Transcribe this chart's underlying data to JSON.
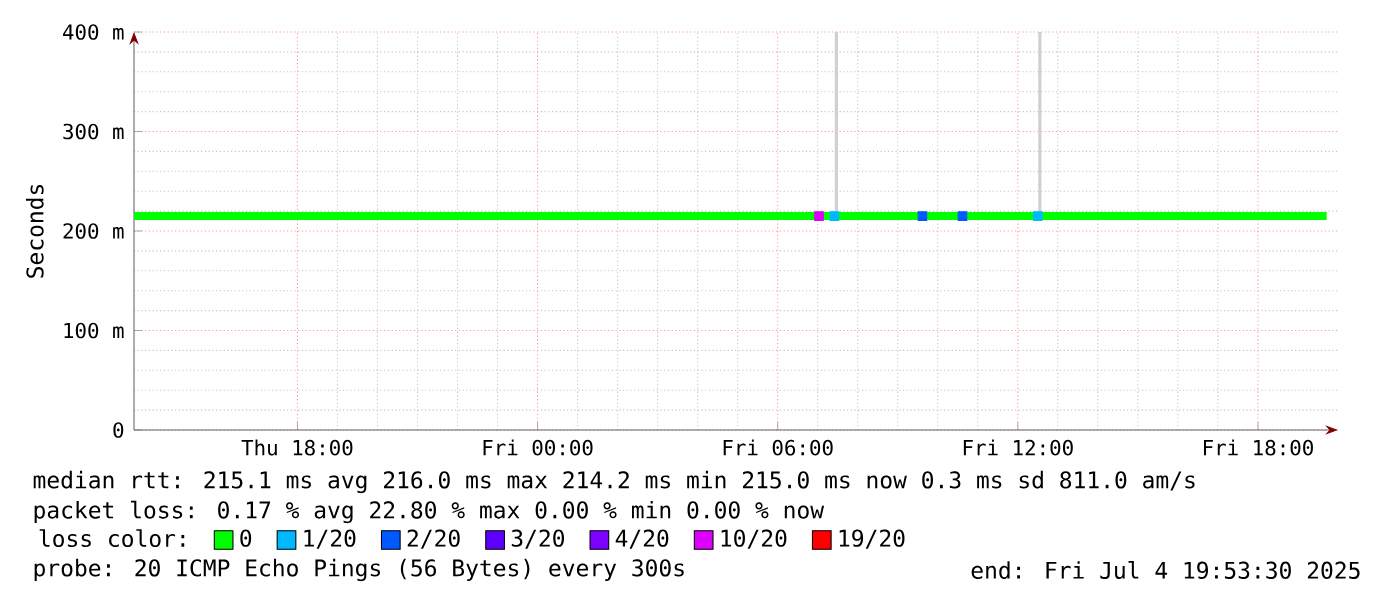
{
  "chart_data": {
    "type": "line",
    "ylabel": "Seconds",
    "xlim": [
      "2025-07-03T13:55",
      "2025-07-04T20:00"
    ],
    "xticks": [
      {
        "value": "2025-07-03T18:00",
        "label": "Thu 18:00"
      },
      {
        "value": "2025-07-04T00:00",
        "label": "Fri 00:00"
      },
      {
        "value": "2025-07-04T06:00",
        "label": "Fri 06:00"
      },
      {
        "value": "2025-07-04T12:00",
        "label": "Fri 12:00"
      },
      {
        "value": "2025-07-04T18:00",
        "label": "Fri 18:00"
      }
    ],
    "ylim": [
      0,
      400
    ],
    "yticks": [
      0,
      {
        "value": 100,
        "label": "100 m"
      },
      {
        "value": 200,
        "label": "200 m"
      },
      {
        "value": 300,
        "label": "300 m"
      },
      {
        "value": 400,
        "label": "400 m"
      }
    ],
    "grid": true,
    "legend": "bottom",
    "legend_title": "loss color:",
    "series": [
      {
        "name": "0",
        "color": "#00ff00",
        "x": [
          "2025-07-03T13:55",
          "2025-07-03T15:00",
          "2025-07-03T16:00",
          "2025-07-03T17:00",
          "2025-07-03T18:00",
          "2025-07-03T19:00",
          "2025-07-03T20:00",
          "2025-07-03T21:00",
          "2025-07-03T22:00",
          "2025-07-03T23:00",
          "2025-07-04T00:00",
          "2025-07-04T01:00",
          "2025-07-04T02:00",
          "2025-07-04T03:00",
          "2025-07-04T04:00",
          "2025-07-04T05:00",
          "2025-07-04T06:00",
          "2025-07-04T07:00",
          "2025-07-04T08:00",
          "2025-07-04T09:00",
          "2025-07-04T10:00",
          "2025-07-04T11:00",
          "2025-07-04T12:00",
          "2025-07-04T13:00",
          "2025-07-04T14:00",
          "2025-07-04T15:00",
          "2025-07-04T16:00",
          "2025-07-04T17:00",
          "2025-07-04T18:00",
          "2025-07-04T19:00",
          "2025-07-04T19:43"
        ],
        "values": [
          215,
          215,
          215,
          215,
          215,
          215,
          215,
          215,
          215,
          215,
          215,
          215,
          215,
          215,
          215,
          215,
          215,
          215,
          215,
          215,
          215,
          215,
          215,
          215,
          215,
          215,
          215,
          215,
          215,
          215,
          215
        ]
      },
      {
        "name": "1/20",
        "type": "scatter",
        "marker": "square",
        "color": "#00b8ff",
        "x": [
          "2025-07-04T07:25",
          "2025-07-04T12:30"
        ],
        "values": [
          215,
          215
        ]
      },
      {
        "name": "2/20",
        "type": "scatter",
        "marker": "square",
        "color": "#0059ff",
        "x": [
          "2025-07-04T09:37",
          "2025-07-04T10:37"
        ],
        "values": [
          215,
          215
        ]
      },
      {
        "name": "3/20",
        "type": "scatter",
        "marker": "square",
        "color": "#5e00ff"
      },
      {
        "name": "4/20",
        "type": "scatter",
        "marker": "square",
        "color": "#7e00ff"
      },
      {
        "name": "10/20",
        "type": "scatter",
        "marker": "square",
        "color": "#dd00ff",
        "x": [
          "2025-07-04T07:02"
        ],
        "values": [
          215
        ]
      },
      {
        "name": "19/20",
        "type": "scatter",
        "marker": "square",
        "color": "#ff0000"
      },
      {
        "color": "#d0d0d0",
        "x": [
          "2025-07-04T07:28",
          "2025-07-04T07:28",
          "2025-07-04T10:00",
          "2025-07-04T12:33",
          "2025-07-04T12:33"
        ],
        "values": [
          215,
          400,
          null,
          215,
          400
        ]
      }
    ],
    "annotations": [
      "median rtt:  215.1 ms avg  216.0 ms max  214.2 ms min  215.0 ms now  0.3 ms sd  811.0   am/s",
      "packet loss: 0.17 % avg  22.80 % max  0.00 % min  0.00 % now",
      "probe:       20 ICMP Echo Pings (56 Bytes) every 300s",
      "end: Fri Jul  4 19:53:30 2025"
    ]
  }
}
